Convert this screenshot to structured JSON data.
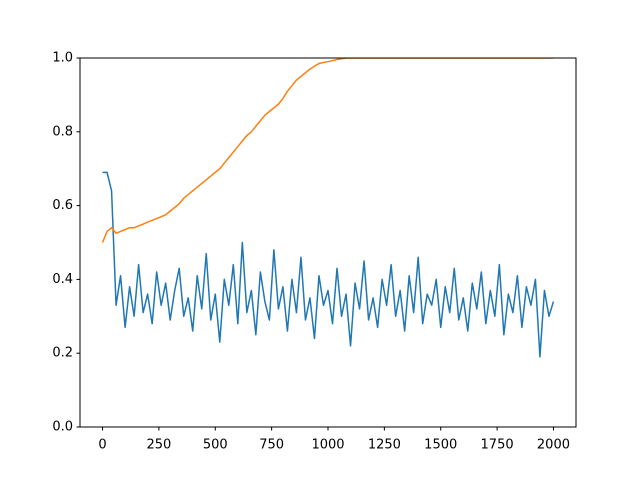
{
  "chart_data": {
    "type": "line",
    "x": [
      0,
      20,
      40,
      60,
      80,
      100,
      120,
      140,
      160,
      180,
      200,
      220,
      240,
      260,
      280,
      300,
      320,
      340,
      360,
      380,
      400,
      420,
      440,
      460,
      480,
      500,
      520,
      540,
      560,
      580,
      600,
      620,
      640,
      660,
      680,
      700,
      720,
      740,
      760,
      780,
      800,
      820,
      840,
      860,
      880,
      900,
      920,
      940,
      960,
      980,
      1000,
      1020,
      1040,
      1060,
      1080,
      1100,
      1120,
      1140,
      1160,
      1180,
      1200,
      1220,
      1240,
      1260,
      1280,
      1300,
      1320,
      1340,
      1360,
      1380,
      1400,
      1420,
      1440,
      1460,
      1480,
      1500,
      1520,
      1540,
      1560,
      1580,
      1600,
      1620,
      1640,
      1660,
      1680,
      1700,
      1720,
      1740,
      1760,
      1780,
      1800,
      1820,
      1840,
      1860,
      1880,
      1900,
      1920,
      1940,
      1960,
      1980,
      2000
    ],
    "series": [
      {
        "color": "#1f77b4",
        "values": [
          0.69,
          0.69,
          0.64,
          0.33,
          0.41,
          0.27,
          0.38,
          0.3,
          0.44,
          0.31,
          0.36,
          0.28,
          0.42,
          0.33,
          0.39,
          0.29,
          0.37,
          0.43,
          0.3,
          0.35,
          0.26,
          0.41,
          0.32,
          0.47,
          0.29,
          0.36,
          0.23,
          0.4,
          0.33,
          0.44,
          0.28,
          0.5,
          0.31,
          0.37,
          0.25,
          0.42,
          0.34,
          0.29,
          0.48,
          0.32,
          0.38,
          0.26,
          0.4,
          0.31,
          0.46,
          0.29,
          0.35,
          0.24,
          0.41,
          0.33,
          0.37,
          0.28,
          0.43,
          0.3,
          0.36,
          0.22,
          0.39,
          0.32,
          0.45,
          0.29,
          0.35,
          0.27,
          0.4,
          0.33,
          0.44,
          0.3,
          0.37,
          0.26,
          0.41,
          0.31,
          0.46,
          0.28,
          0.36,
          0.33,
          0.4,
          0.27,
          0.38,
          0.31,
          0.43,
          0.29,
          0.35,
          0.26,
          0.39,
          0.32,
          0.42,
          0.28,
          0.37,
          0.3,
          0.44,
          0.25,
          0.36,
          0.31,
          0.41,
          0.27,
          0.38,
          0.33,
          0.4,
          0.19,
          0.37,
          0.3,
          0.34
        ]
      },
      {
        "color": "#ff7f0e",
        "values": [
          0.5,
          0.53,
          0.54,
          0.525,
          0.53,
          0.535,
          0.54,
          0.54,
          0.545,
          0.55,
          0.555,
          0.56,
          0.565,
          0.57,
          0.575,
          0.585,
          0.595,
          0.605,
          0.62,
          0.63,
          0.64,
          0.65,
          0.66,
          0.67,
          0.68,
          0.69,
          0.7,
          0.715,
          0.73,
          0.745,
          0.76,
          0.775,
          0.79,
          0.8,
          0.815,
          0.83,
          0.845,
          0.855,
          0.865,
          0.875,
          0.89,
          0.91,
          0.925,
          0.94,
          0.95,
          0.96,
          0.97,
          0.978,
          0.985,
          0.988,
          0.99,
          0.993,
          0.996,
          0.998,
          1.0,
          1.0,
          1.0,
          1.0,
          1.0,
          1.0,
          1.0,
          1.0,
          1.0,
          1.0,
          1.0,
          1.0,
          1.0,
          1.0,
          1.0,
          1.0,
          1.0,
          1.0,
          1.0,
          1.0,
          1.0,
          1.0,
          1.0,
          1.0,
          1.0,
          1.0,
          1.0,
          1.0,
          1.0,
          1.0,
          1.0,
          1.0,
          1.0,
          1.0,
          1.0,
          1.0,
          1.0,
          1.0,
          1.0,
          1.0,
          1.0,
          1.0,
          1.0,
          1.0,
          1.0,
          1.0,
          1.0
        ]
      }
    ],
    "xlim": [
      -100,
      2100
    ],
    "xticks": [
      0,
      250,
      500,
      750,
      1000,
      1250,
      1500,
      1750,
      2000
    ],
    "ylim": [
      0,
      1
    ],
    "yticks": [
      {
        "value": 0,
        "label": "0.0"
      },
      0.2,
      0.4,
      0.6,
      0.8,
      {
        "value": 1,
        "label": "1.0"
      }
    ]
  }
}
